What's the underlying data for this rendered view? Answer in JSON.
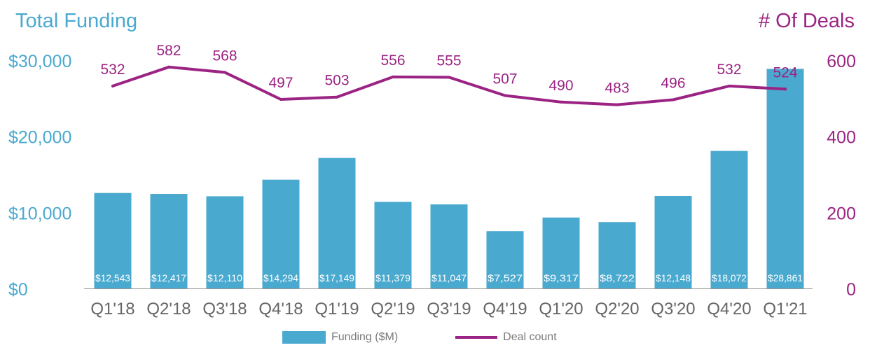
{
  "titles": {
    "left": "Total Funding",
    "right": "# Of Deals"
  },
  "legend": {
    "bar_label": "Funding ($M)",
    "line_label": "Deal count"
  },
  "colors": {
    "bar": "#4aa9cf",
    "line": "#9b2383",
    "left_axis_text": "#4aa9cf",
    "right_axis_text": "#9b2383",
    "x_axis_text": "#666666",
    "bar_label_text": "#ffffff"
  },
  "chart_data": {
    "type": "bar",
    "categories": [
      "Q1'18",
      "Q2'18",
      "Q3'18",
      "Q4'18",
      "Q1'19",
      "Q2'19",
      "Q3'19",
      "Q4'19",
      "Q1'20",
      "Q2'20",
      "Q3'20",
      "Q4'20",
      "Q1'21"
    ],
    "series": [
      {
        "name": "Funding ($M)",
        "type": "bar",
        "axis": "left",
        "values": [
          12543,
          12417,
          12110,
          14294,
          17149,
          11379,
          11047,
          7527,
          9317,
          8722,
          12148,
          18072,
          28861
        ],
        "labels": [
          "$12,543",
          "$12,417",
          "$12,110",
          "$14,294",
          "$17,149",
          "$11,379",
          "$11,047",
          "$7,527",
          "$9,317",
          "$8,722",
          "$12,148",
          "$18,072",
          "$28,861"
        ]
      },
      {
        "name": "Deal count",
        "type": "line",
        "axis": "right",
        "values": [
          532,
          582,
          568,
          497,
          503,
          556,
          555,
          507,
          490,
          483,
          496,
          532,
          524
        ]
      }
    ],
    "y_left": {
      "range": [
        0,
        30000
      ],
      "ticks": [
        0,
        10000,
        20000,
        30000
      ],
      "tick_labels": [
        "$0",
        "$10,000",
        "$20,000",
        "$30,000"
      ]
    },
    "y_right": {
      "range": [
        0,
        600
      ],
      "ticks": [
        0,
        200,
        400,
        600
      ],
      "tick_labels": [
        "0",
        "200",
        "400",
        "600"
      ]
    },
    "grid": false,
    "legend_position": "bottom"
  }
}
